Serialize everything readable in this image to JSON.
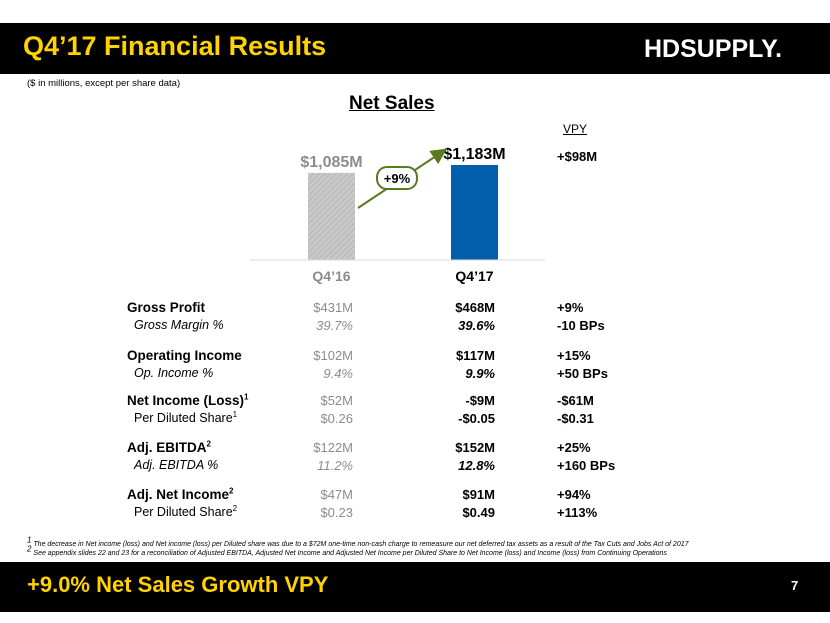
{
  "header": {
    "title": "Q4’17 Financial Results",
    "logo_text": "HDSUPPLY.",
    "subtitle": "($ in millions, except per share data)"
  },
  "chart_data": {
    "type": "bar",
    "title": "Net Sales",
    "categories": [
      "Q4’16",
      "Q4’17"
    ],
    "values": [
      1085,
      1183
    ],
    "data_labels": [
      "$1,085M",
      "$1,183M"
    ],
    "growth_label": "+9%",
    "vpy": "+$98M",
    "colors": [
      "#c0c0c0",
      "#005eab"
    ]
  },
  "table": {
    "vpy_header": "VPY",
    "rows": [
      {
        "label": "Gross Profit",
        "sup": "",
        "q416": "$431M",
        "q417": "$468M",
        "vpy": "+9%",
        "style": "main"
      },
      {
        "label": "Gross Margin %",
        "sup": "",
        "q416": "39.7%",
        "q417": "39.6%",
        "vpy": "-10 BPs",
        "style": "sub-italic"
      },
      {
        "label": "Operating Income",
        "sup": "",
        "q416": "$102M",
        "q417": "$117M",
        "vpy": "+15%",
        "style": "main"
      },
      {
        "label": "Op. Income %",
        "sup": "",
        "q416": "9.4%",
        "q417": "9.9%",
        "vpy": "+50 BPs",
        "style": "sub-italic"
      },
      {
        "label": "Net Income (Loss)",
        "sup": "1",
        "q416": "$52M",
        "q417": "-$9M",
        "vpy": "-$61M",
        "style": "main"
      },
      {
        "label": "Per Diluted Share",
        "sup": "1",
        "q416": "$0.26",
        "q417": "-$0.05",
        "vpy": "-$0.31",
        "style": "sub"
      },
      {
        "label": "Adj. EBITDA",
        "sup": "2",
        "q416": "$122M",
        "q417": "$152M",
        "vpy": "+25%",
        "style": "main"
      },
      {
        "label": "Adj. EBITDA %",
        "sup": "",
        "q416": "11.2%",
        "q417": "12.8%",
        "vpy": "+160 BPs",
        "style": "sub-italic"
      },
      {
        "label": "Adj. Net Income",
        "sup": "2",
        "q416": "$47M",
        "q417": "$91M",
        "vpy": "+94%",
        "style": "main"
      },
      {
        "label": "Per Diluted Share",
        "sup": "2",
        "q416": "$0.23",
        "q417": "$0.49",
        "vpy": "+113%",
        "style": "sub"
      }
    ]
  },
  "footnotes": {
    "fn1_num": "1",
    "fn1": "The decrease in Net income (loss) and Net income (loss) per Diluted share was due to a $72M one-time non-cash charge to remeasure our net deferred tax assets as a result of the Tax Cuts and Jobs Act of 2017",
    "fn2_num": "2",
    "fn2": "See appendix slides 22 and 23 for a reconciliation of Adjusted EBITDA, Adjusted Net Income and Adjusted Net Income per Diluted Share to Net Income (loss) and Income (loss) from Continuing Operations"
  },
  "footer": {
    "text": "+9.0% Net Sales Growth VPY",
    "page_number": "7"
  },
  "colors": {
    "accent_yellow": "#ffd200",
    "bar_prior": "#c0c0c0",
    "bar_current": "#005eab",
    "arrow_green": "#5a7a1e"
  }
}
